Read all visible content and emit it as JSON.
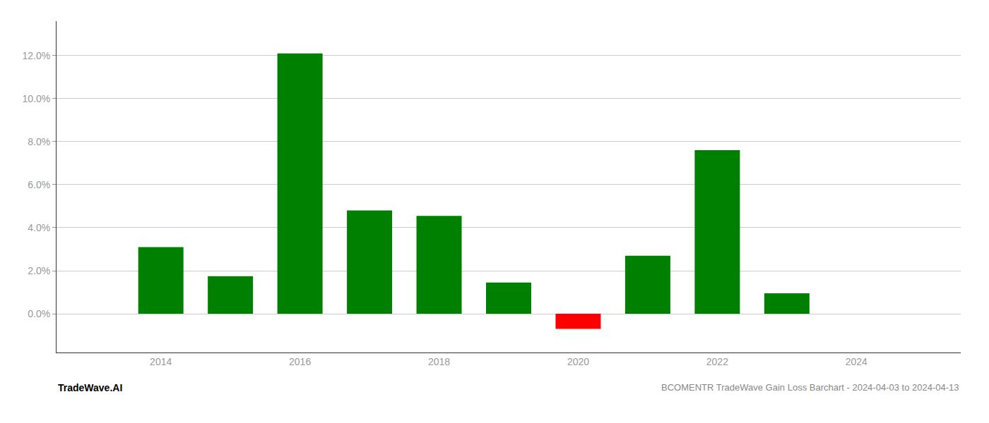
{
  "chart_data": {
    "type": "bar",
    "title": "BCOMENTR TradeWave Gain Loss Barchart - 2024-04-03 to 2024-04-13",
    "annotations": [
      "TradeWave.AI"
    ],
    "x": [
      2014,
      2015,
      2016,
      2017,
      2018,
      2019,
      2020,
      2021,
      2022,
      2023
    ],
    "values": [
      0.031,
      0.0175,
      0.121,
      0.048,
      0.0455,
      0.0145,
      -0.007,
      0.027,
      0.076,
      0.0095
    ],
    "colors": [
      "#008000",
      "#008000",
      "#008000",
      "#008000",
      "#008000",
      "#008000",
      "#ff0000",
      "#008000",
      "#008000",
      "#008000"
    ],
    "xlim": [
      2012.5,
      2025.5
    ],
    "xticks": [
      2014,
      2016,
      2018,
      2020,
      2022,
      2024
    ],
    "ylim": [
      -0.018,
      0.136
    ],
    "yticks": [
      {
        "value": 0.0,
        "label": "0.0%"
      },
      {
        "value": 0.02,
        "label": "2.0%"
      },
      {
        "value": 0.04,
        "label": "4.0%"
      },
      {
        "value": 0.06,
        "label": "6.0%"
      },
      {
        "value": 0.08,
        "label": "8.0%"
      },
      {
        "value": 0.1,
        "label": "10.0%"
      },
      {
        "value": 0.12,
        "label": "12.0%"
      }
    ],
    "grid": true
  }
}
